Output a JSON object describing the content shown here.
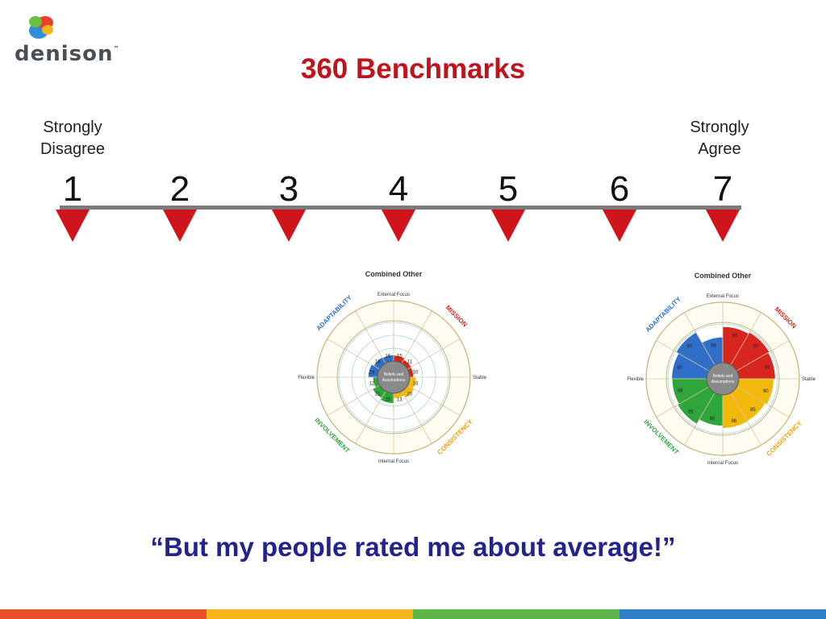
{
  "logo": {
    "text": "denison",
    "tm": "™"
  },
  "title": "360 Benchmarks",
  "scale": {
    "left_anchor_line1": "Strongly",
    "left_anchor_line2": "Disagree",
    "right_anchor_line1": "Strongly",
    "right_anchor_line2": "Agree",
    "points": [
      "1",
      "2",
      "3",
      "4",
      "5",
      "6",
      "7"
    ],
    "marker_color": "#d0141c"
  },
  "wheels": [
    {
      "title": "Combined Other",
      "segments": [
        {
          "trait": "adaptability",
          "value": 24,
          "color": "#2f6fc9"
        },
        {
          "trait": "adaptability",
          "value": 18,
          "color": "#2f6fc9"
        },
        {
          "trait": "adaptability",
          "value": 16,
          "color": "#2f6fc9"
        },
        {
          "trait": "involvement",
          "value": 26,
          "color": "#2fa63c"
        },
        {
          "trait": "involvement",
          "value": 21,
          "color": "#2fa63c"
        },
        {
          "trait": "involvement",
          "value": 12,
          "color": "#2fa63c"
        },
        {
          "trait": "consistency",
          "value": 16,
          "color": "#f2b90c"
        },
        {
          "trait": "consistency",
          "value": 20,
          "color": "#f2b90c"
        },
        {
          "trait": "consistency",
          "value": 13,
          "color": "#f2b90c"
        },
        {
          "trait": "mission",
          "value": 15,
          "color": "#d8261f"
        },
        {
          "trait": "mission",
          "value": 11,
          "color": "#d8261f"
        },
        {
          "trait": "mission",
          "value": 10,
          "color": "#d8261f"
        }
      ]
    },
    {
      "title": "Combined Other",
      "segments": [
        {
          "trait": "adaptability",
          "value": 90,
          "color": "#2f6fc9"
        },
        {
          "trait": "adaptability",
          "value": 97,
          "color": "#2f6fc9"
        },
        {
          "trait": "adaptability",
          "value": 66,
          "color": "#2f6fc9"
        },
        {
          "trait": "involvement",
          "value": 80,
          "color": "#2fa63c"
        },
        {
          "trait": "involvement",
          "value": 93,
          "color": "#2fa63c"
        },
        {
          "trait": "involvement",
          "value": 89,
          "color": "#2fa63c"
        },
        {
          "trait": "consistency",
          "value": 90,
          "color": "#f2b90c"
        },
        {
          "trait": "consistency",
          "value": 85,
          "color": "#f2b90c"
        },
        {
          "trait": "consistency",
          "value": 86,
          "color": "#f2b90c"
        },
        {
          "trait": "mission",
          "value": 93,
          "color": "#d8261f"
        },
        {
          "trait": "mission",
          "value": 97,
          "color": "#d8261f"
        },
        {
          "trait": "mission",
          "value": 94,
          "color": "#d8261f"
        }
      ]
    }
  ],
  "wheel_labels": {
    "external": "External Focus",
    "internal": "Internal Focus",
    "flexible": "Flexible",
    "stable": "Stable",
    "center_line1": "Beliefs and",
    "center_line2": "Assumptions",
    "traits": {
      "adaptability": "ADAPTABILITY",
      "mission": "MISSION",
      "consistency": "CONSISTENCY",
      "involvement": "INVOLVEMENT"
    }
  },
  "quote": "“But my people rated me about average!”",
  "footer_colors": [
    "#e8502a",
    "#f4b41a",
    "#5cb548",
    "#2f7fc6"
  ]
}
